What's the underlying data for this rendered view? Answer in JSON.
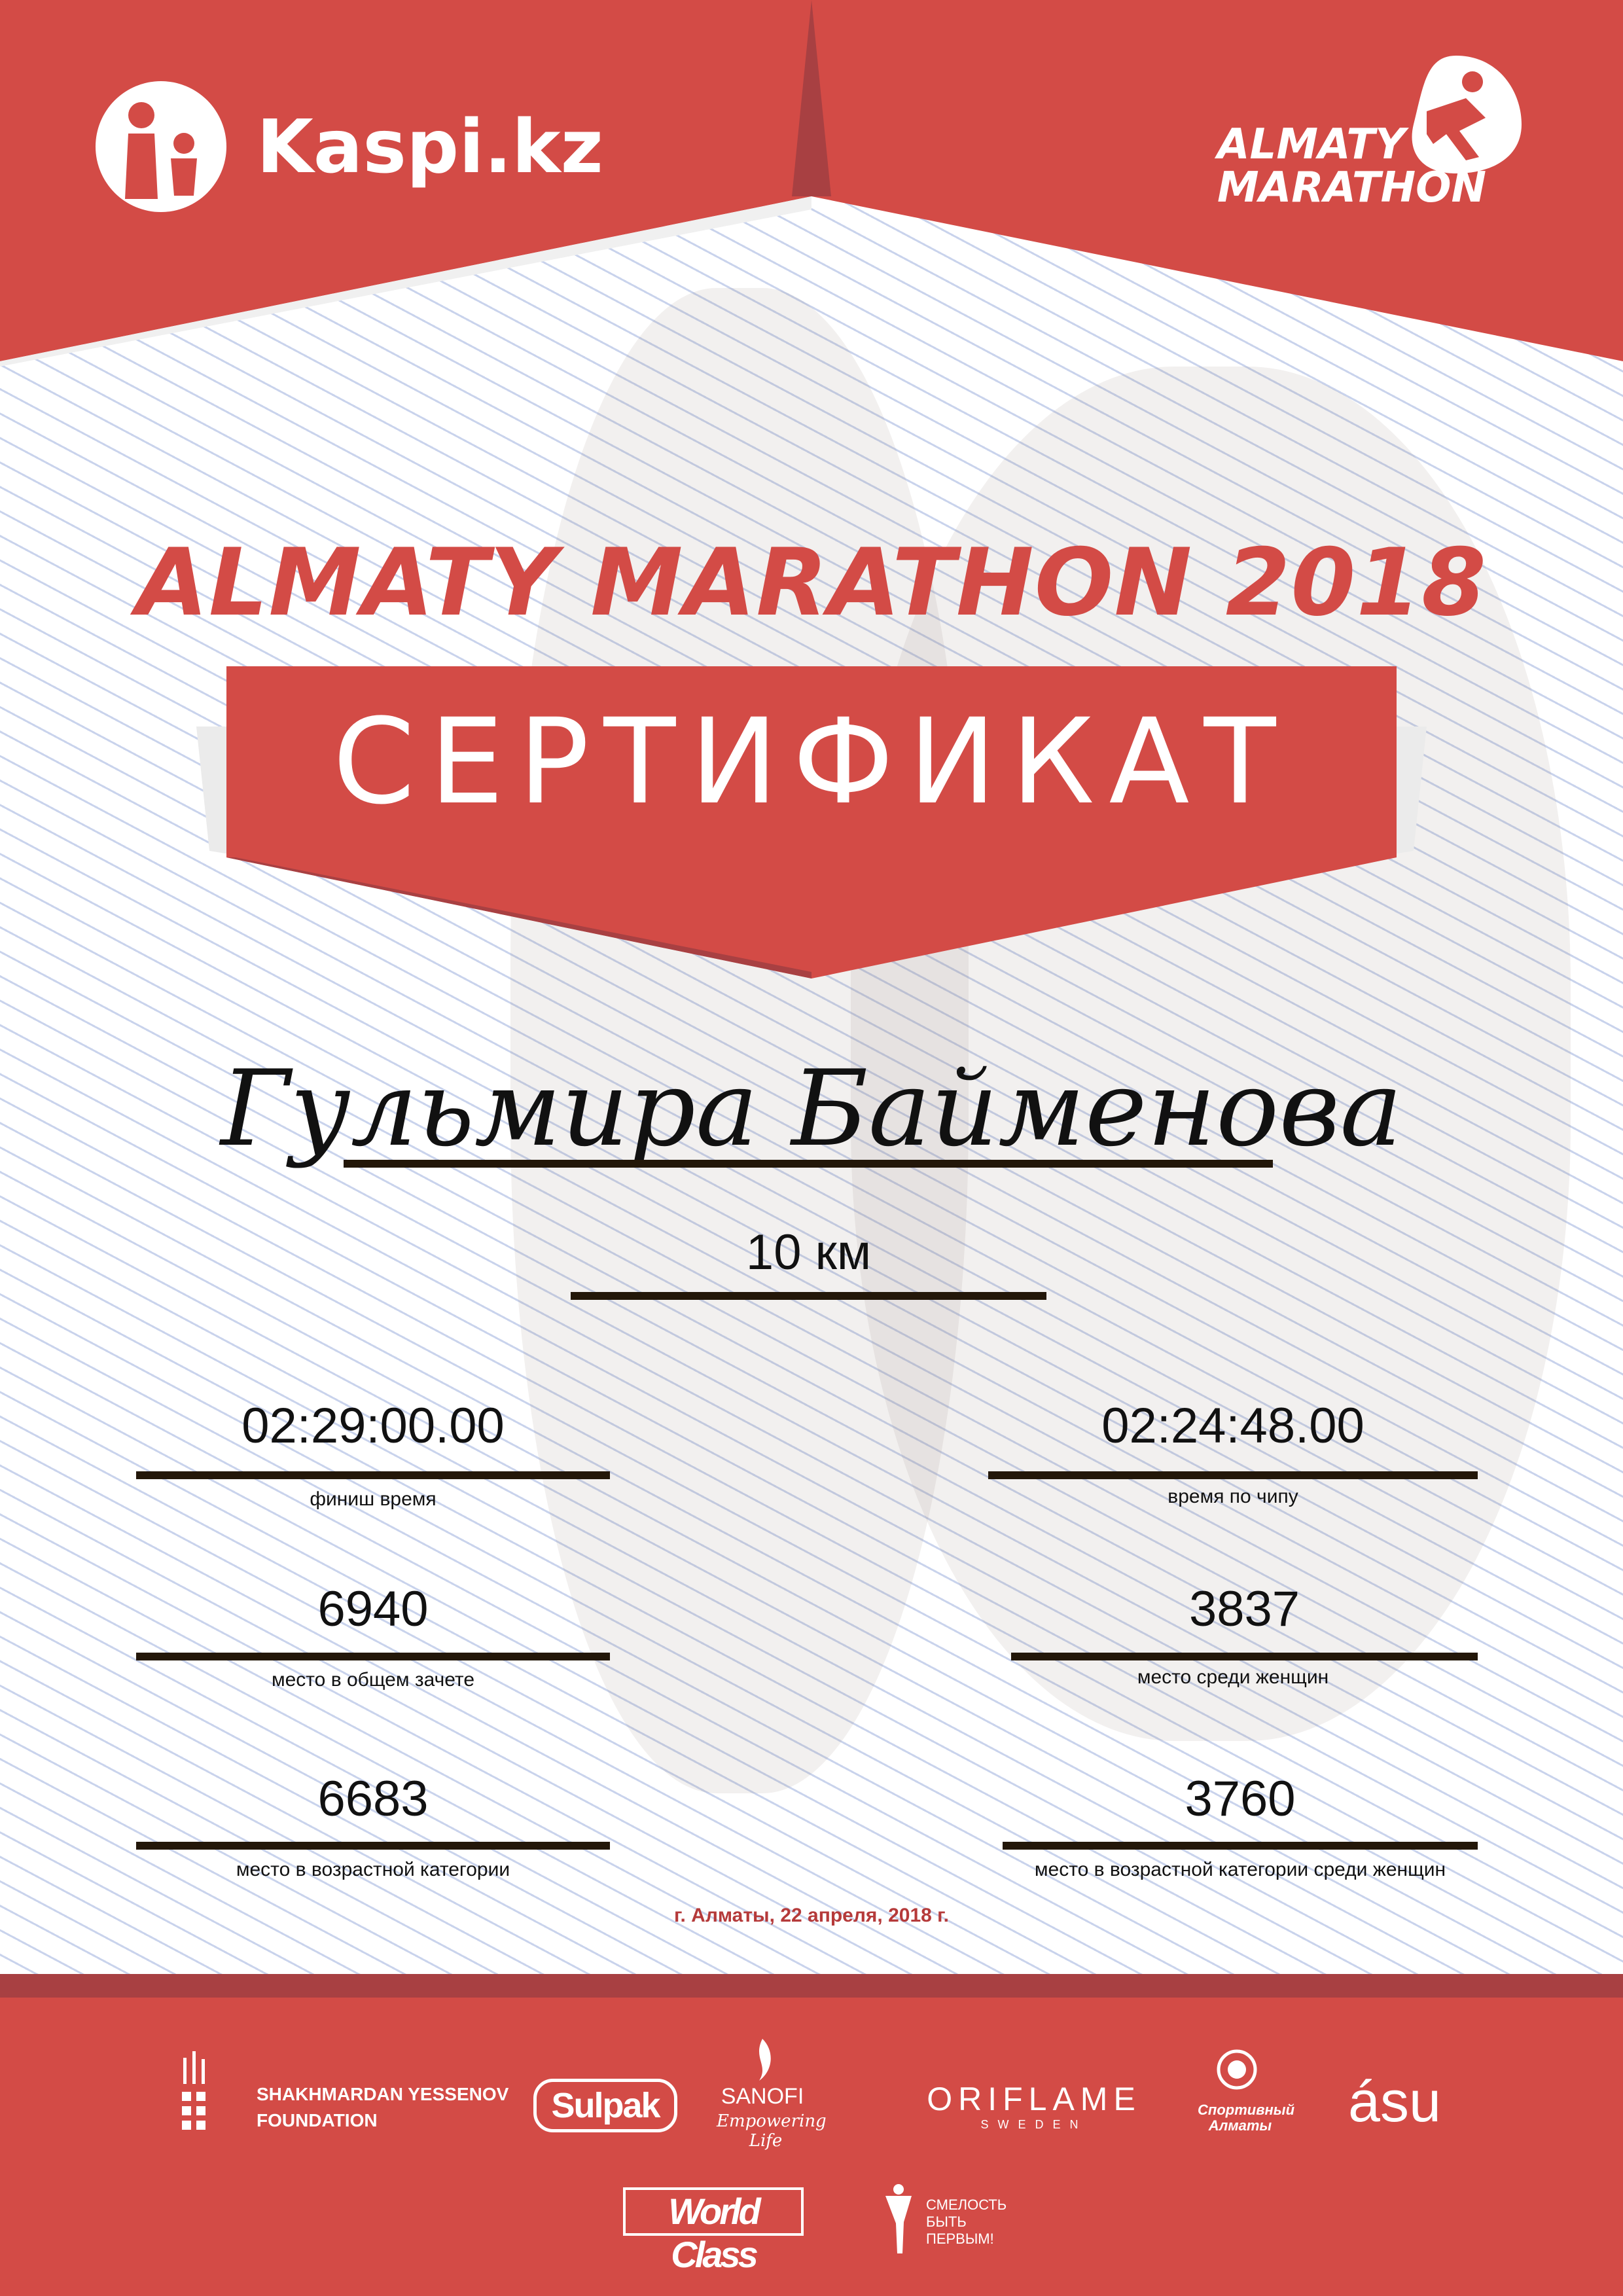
{
  "colors": {
    "brand_red": "#d34b46",
    "dark_red": "#a84042",
    "line": "#231709",
    "date": "#b53a3a"
  },
  "header": {
    "sponsor_logo": "Kaspi.kz",
    "event_logo_line1": "ALMATY",
    "event_logo_line2": "MARATHON"
  },
  "title": "ALMATY MARATHON 2018",
  "certificate_label": "СЕРТИФИКАТ",
  "participant_name": "Гульмира Байменова",
  "distance": "10 км",
  "results": {
    "finish_time": {
      "value": "02:29:00.00",
      "label": "финиш время"
    },
    "chip_time": {
      "value": "02:24:48.00",
      "label": "время по чипу"
    },
    "overall_place": {
      "value": "6940",
      "label": "место в общем зачете"
    },
    "women_place": {
      "value": "3837",
      "label": "место среди женщин"
    },
    "age_place": {
      "value": "6683",
      "label": "место в возрастной категории"
    },
    "age_women_place": {
      "value": "3760",
      "label": "место в возрастной категории среди женщин"
    }
  },
  "date": "г. Алматы, 22 апреля, 2018 г.",
  "sponsors": {
    "yessenov_line1": "SHAKHMARDAN YESSENOV",
    "yessenov_line2": "FOUNDATION",
    "sulpak": "Sulpak",
    "sanofi": "SANOFI",
    "sanofi_tagline": "Empowering Life",
    "oriflame": "ORIFLAME",
    "oriflame_sub": "SWEDEN",
    "sport_almaty": "Спортивный Алматы",
    "asu": "ásu",
    "worldclass": "World Class",
    "fund_line1": "СМЕЛОСТЬ",
    "fund_line2": "БЫТЬ",
    "fund_line3": "ПЕРВЫМ!"
  }
}
